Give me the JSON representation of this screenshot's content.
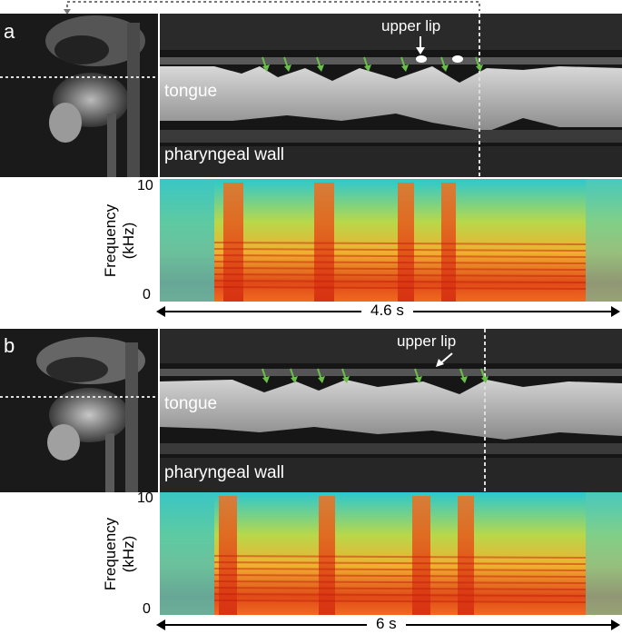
{
  "panels": [
    {
      "letter": "a",
      "labels": {
        "tongue": "tongue",
        "pharyngeal_wall": "pharyngeal wall",
        "upper_lip": "upper lip"
      },
      "spectrogram": {
        "axis_label_line1": "Frequency",
        "axis_label_line2": "(kHz)",
        "tick_top": "10",
        "tick_bottom": "0"
      },
      "duration": "4.6 s"
    },
    {
      "letter": "b",
      "labels": {
        "tongue": "tongue",
        "pharyngeal_wall": "pharyngeal wall",
        "upper_lip": "upper lip"
      },
      "spectrogram": {
        "axis_label_line1": "Frequency",
        "axis_label_line2": "(kHz)",
        "tick_top": "10",
        "tick_bottom": "0"
      },
      "duration": "6 s"
    }
  ],
  "colors": {
    "arrow_green": "#6abf4b",
    "dotted_line": "#dddddd",
    "spec_low": "#27c2d6",
    "spec_high": "#d42a10"
  }
}
